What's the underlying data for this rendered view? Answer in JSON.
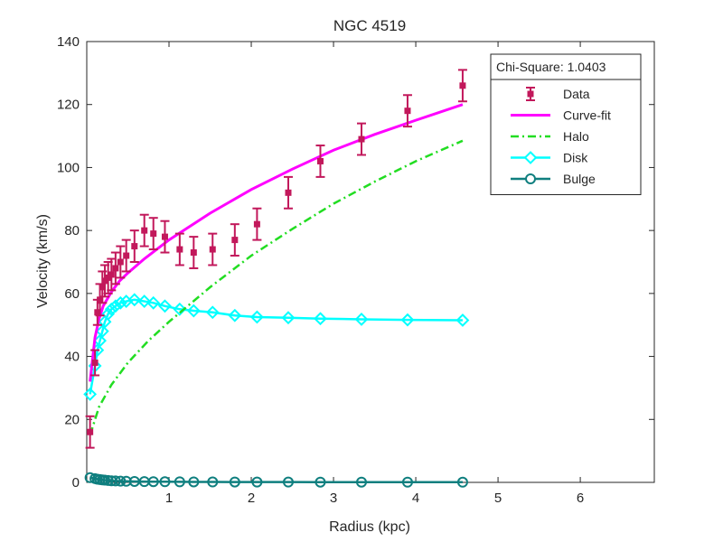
{
  "chart_data": {
    "type": "scatter",
    "title": "NGC 4519",
    "xlabel": "Radius (kpc)",
    "ylabel": "Velocity (km/s)",
    "xlim": [
      0,
      6.9
    ],
    "ylim": [
      0,
      140
    ],
    "xticks": [
      1,
      2,
      3,
      4,
      5,
      6
    ],
    "yticks": [
      0,
      20,
      40,
      60,
      80,
      100,
      120,
      140
    ],
    "grid": false,
    "legend_position": "top-right",
    "annotation": "Chi-Square: 1.0403",
    "colors": {
      "data": "#c2185b",
      "curvefit": "#ff00ff",
      "halo": "#22dd22",
      "disk": "#00ffff",
      "bulge": "#0f7f7f"
    },
    "series": [
      {
        "name": "Data",
        "style": "errorbar",
        "x": [
          0.04,
          0.1,
          0.13,
          0.16,
          0.19,
          0.22,
          0.26,
          0.3,
          0.35,
          0.41,
          0.48,
          0.58,
          0.7,
          0.81,
          0.95,
          1.13,
          1.3,
          1.53,
          1.8,
          2.07,
          2.45,
          2.84,
          3.34,
          3.9,
          4.57
        ],
        "y": [
          16,
          38,
          54,
          58,
          62,
          64,
          65,
          66,
          68,
          70,
          72,
          75,
          80,
          79,
          78,
          74,
          73,
          74,
          77,
          82,
          92,
          102,
          109,
          118,
          126
        ],
        "err": [
          5,
          4,
          4,
          5,
          5,
          5,
          5,
          5,
          5,
          5,
          5,
          5,
          5,
          5,
          5,
          5,
          5,
          5,
          5,
          5,
          5,
          5,
          5,
          5,
          5
        ]
      },
      {
        "name": "Curve-fit",
        "style": "solid",
        "x": [
          0.04,
          0.1,
          0.15,
          0.2,
          0.3,
          0.4,
          0.5,
          0.7,
          1.0,
          1.5,
          2.0,
          2.5,
          3.0,
          3.5,
          4.0,
          4.57
        ],
        "y": [
          32,
          46,
          52,
          56,
          60.5,
          64,
          66.5,
          71,
          77,
          85.5,
          93,
          99.5,
          105.5,
          110.5,
          115,
          120
        ]
      },
      {
        "name": "Halo",
        "style": "dashdot",
        "x": [
          0.04,
          0.15,
          0.3,
          0.5,
          0.75,
          1.0,
          1.5,
          2.0,
          2.5,
          3.0,
          3.5,
          4.0,
          4.57
        ],
        "y": [
          15,
          24,
          31,
          38,
          45,
          51,
          62,
          72,
          80.5,
          88.5,
          95.5,
          102,
          108.5
        ]
      },
      {
        "name": "Disk",
        "style": "diamond",
        "x": [
          0.04,
          0.1,
          0.13,
          0.16,
          0.19,
          0.22,
          0.26,
          0.3,
          0.35,
          0.41,
          0.48,
          0.58,
          0.7,
          0.81,
          0.95,
          1.13,
          1.3,
          1.53,
          1.8,
          2.07,
          2.45,
          2.84,
          3.34,
          3.9,
          4.57
        ],
        "y": [
          28,
          37,
          42,
          45,
          48,
          51,
          53.5,
          55,
          56,
          57,
          57.5,
          58,
          57.5,
          57,
          56,
          55,
          54.5,
          54,
          53,
          52.5,
          52.3,
          52,
          51.8,
          51.6,
          51.5
        ]
      },
      {
        "name": "Bulge",
        "style": "circle",
        "x": [
          0.04,
          0.1,
          0.13,
          0.16,
          0.19,
          0.22,
          0.26,
          0.3,
          0.35,
          0.41,
          0.48,
          0.58,
          0.7,
          0.81,
          0.95,
          1.13,
          1.3,
          1.53,
          1.8,
          2.07,
          2.45,
          2.84,
          3.34,
          3.9,
          4.57
        ],
        "y": [
          1.5,
          1.2,
          1,
          0.9,
          0.8,
          0.7,
          0.6,
          0.5,
          0.45,
          0.4,
          0.35,
          0.3,
          0.25,
          0.22,
          0.2,
          0.18,
          0.15,
          0.13,
          0.12,
          0.1,
          0.1,
          0.08,
          0.08,
          0.07,
          0.06
        ]
      }
    ]
  }
}
